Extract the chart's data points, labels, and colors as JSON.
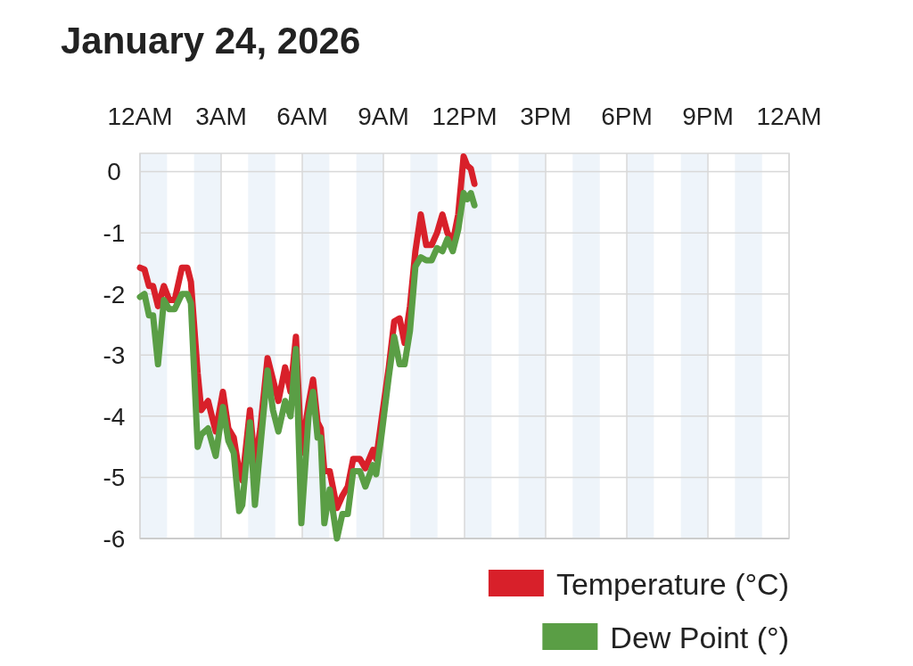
{
  "chart_data": {
    "type": "line",
    "title": "January 24, 2026",
    "x": [
      "2026-01-24T00:00",
      "2026-01-24T00:10",
      "2026-01-24T00:20",
      "2026-01-24T00:29",
      "2026-01-24T00:40",
      "2026-01-24T00:53",
      "2026-01-24T01:05",
      "2026-01-24T01:17",
      "2026-01-24T01:33",
      "2026-01-24T01:45",
      "2026-01-24T01:53",
      "2026-01-24T02:08",
      "2026-01-24T02:16",
      "2026-01-24T02:31",
      "2026-01-24T02:48",
      "2026-01-24T03:04",
      "2026-01-24T03:16",
      "2026-01-24T03:28",
      "2026-01-24T03:40",
      "2026-01-24T03:47",
      "2026-01-24T04:04",
      "2026-01-24T04:15",
      "2026-01-24T04:27",
      "2026-01-24T04:43",
      "2026-01-24T04:55",
      "2026-01-24T05:07",
      "2026-01-24T05:22",
      "2026-01-24T05:34",
      "2026-01-24T05:46",
      "2026-01-24T05:58",
      "2026-01-24T06:14",
      "2026-01-24T06:24",
      "2026-01-24T06:34",
      "2026-01-24T06:41",
      "2026-01-24T06:49",
      "2026-01-24T07:01",
      "2026-01-24T07:17",
      "2026-01-24T07:29",
      "2026-01-24T07:41",
      "2026-01-24T07:53",
      "2026-01-24T08:08",
      "2026-01-24T08:20",
      "2026-01-24T08:37",
      "2026-01-24T08:44",
      "2026-01-24T08:56",
      "2026-01-24T09:12",
      "2026-01-24T09:24",
      "2026-01-24T09:36",
      "2026-01-24T09:47",
      "2026-01-24T09:59",
      "2026-01-24T10:11",
      "2026-01-24T10:23",
      "2026-01-24T10:35",
      "2026-01-24T10:47",
      "2026-01-24T10:59",
      "2026-01-24T11:11",
      "2026-01-24T11:22",
      "2026-01-24T11:34",
      "2026-01-24T11:46",
      "2026-01-24T11:58",
      "2026-01-24T12:06",
      "2026-01-24T12:14",
      "2026-01-24T12:22"
    ],
    "series": [
      {
        "name": "Temperature (°C)",
        "color": "#d8202a",
        "values": [
          -1.57,
          -1.6,
          -1.87,
          -1.87,
          -2.2,
          -1.87,
          -2.1,
          -2.1,
          -1.57,
          -1.57,
          -1.8,
          -3.3,
          -3.9,
          -3.75,
          -4.25,
          -3.6,
          -4.2,
          -4.35,
          -4.9,
          -5.05,
          -3.9,
          -4.8,
          -4.2,
          -3.05,
          -3.4,
          -3.75,
          -3.2,
          -3.6,
          -2.7,
          -4.6,
          -3.8,
          -3.4,
          -4.1,
          -4.2,
          -4.9,
          -4.9,
          -5.5,
          -5.3,
          -5.15,
          -4.7,
          -4.7,
          -4.85,
          -4.55,
          -4.7,
          -4.05,
          -3.2,
          -2.45,
          -2.4,
          -2.8,
          -2.2,
          -1.3,
          -0.7,
          -1.2,
          -1.2,
          -1.0,
          -0.7,
          -1.0,
          -1.15,
          -0.7,
          0.25,
          0.1,
          0.05,
          -0.2
        ]
      },
      {
        "name": "Dew Point (°)",
        "color": "#5a9e45",
        "values": [
          -2.05,
          -2.0,
          -2.35,
          -2.35,
          -3.15,
          -2.1,
          -2.25,
          -2.25,
          -2.0,
          -2.0,
          -2.15,
          -4.5,
          -4.3,
          -4.2,
          -4.65,
          -3.85,
          -4.4,
          -4.6,
          -5.55,
          -5.45,
          -4.1,
          -5.45,
          -4.5,
          -3.25,
          -3.9,
          -4.25,
          -3.75,
          -4.0,
          -2.9,
          -5.75,
          -4.0,
          -3.6,
          -4.35,
          -4.35,
          -5.75,
          -5.2,
          -6.0,
          -5.6,
          -5.6,
          -4.9,
          -4.9,
          -5.15,
          -4.8,
          -4.95,
          -4.3,
          -3.35,
          -2.7,
          -3.15,
          -3.15,
          -2.6,
          -1.55,
          -1.4,
          -1.45,
          -1.45,
          -1.25,
          -1.3,
          -1.1,
          -1.3,
          -0.95,
          -0.35,
          -0.45,
          -0.35,
          -0.55
        ]
      }
    ],
    "xlim": [
      "2026-01-24T00:00",
      "2026-01-25T00:00"
    ],
    "xticks": [
      {
        "value": "2026-01-24T00:00",
        "label": "12AM"
      },
      {
        "value": "2026-01-24T03:00",
        "label": "3AM"
      },
      {
        "value": "2026-01-24T06:00",
        "label": "6AM"
      },
      {
        "value": "2026-01-24T09:00",
        "label": "9AM"
      },
      {
        "value": "2026-01-24T12:00",
        "label": "12PM"
      },
      {
        "value": "2026-01-24T15:00",
        "label": "3PM"
      },
      {
        "value": "2026-01-24T18:00",
        "label": "6PM"
      },
      {
        "value": "2026-01-24T21:00",
        "label": "9PM"
      },
      {
        "value": "2026-01-25T00:00",
        "label": "12AM"
      }
    ],
    "ylim": [
      -6,
      0.3
    ],
    "yticks": [
      0,
      -1,
      -2,
      -3,
      -4,
      -5,
      -6
    ],
    "grid": true,
    "bands": [
      {
        "axis": "x",
        "from": "2026-01-24T00:00",
        "to": "2026-01-24T01:00",
        "color": "#eef4fa"
      },
      {
        "axis": "x",
        "from": "2026-01-24T02:00",
        "to": "2026-01-24T03:00",
        "color": "#eef4fa"
      },
      {
        "axis": "x",
        "from": "2026-01-24T04:00",
        "to": "2026-01-24T05:00",
        "color": "#eef4fa"
      },
      {
        "axis": "x",
        "from": "2026-01-24T06:00",
        "to": "2026-01-24T07:00",
        "color": "#eef4fa"
      },
      {
        "axis": "x",
        "from": "2026-01-24T08:00",
        "to": "2026-01-24T09:00",
        "color": "#eef4fa"
      },
      {
        "axis": "x",
        "from": "2026-01-24T10:00",
        "to": "2026-01-24T11:00",
        "color": "#eef4fa"
      },
      {
        "axis": "x",
        "from": "2026-01-24T12:00",
        "to": "2026-01-24T13:00",
        "color": "#eef4fa"
      },
      {
        "axis": "x",
        "from": "2026-01-24T14:00",
        "to": "2026-01-24T15:00",
        "color": "#eef4fa"
      },
      {
        "axis": "x",
        "from": "2026-01-24T16:00",
        "to": "2026-01-24T17:00",
        "color": "#eef4fa"
      },
      {
        "axis": "x",
        "from": "2026-01-24T18:00",
        "to": "2026-01-24T19:00",
        "color": "#eef4fa"
      },
      {
        "axis": "x",
        "from": "2026-01-24T20:00",
        "to": "2026-01-24T21:00",
        "color": "#eef4fa"
      },
      {
        "axis": "x",
        "from": "2026-01-24T22:00",
        "to": "2026-01-24T23:00",
        "color": "#eef4fa"
      }
    ],
    "legend": "bottom right",
    "line_style": "solid",
    "marker": "none"
  }
}
